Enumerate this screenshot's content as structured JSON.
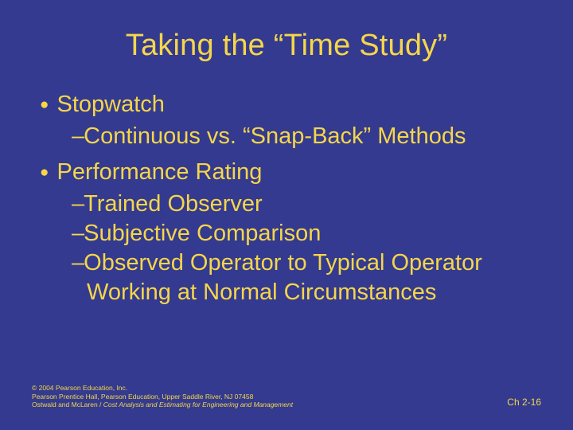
{
  "colors": {
    "background": "#333a8f",
    "text": "#f6d64a"
  },
  "title": "Taking the “Time Study”",
  "bullets": {
    "b1": "Stopwatch",
    "b1_1": "Continuous vs. “Snap-Back” Methods",
    "b2": "Performance Rating",
    "b2_1": "Trained Observer",
    "b2_2": "Subjective Comparison",
    "b2_3": "Observed Operator to Typical Operator Working at Normal Circumstances"
  },
  "footer": {
    "line1": "© 2004 Pearson Education, Inc.",
    "line2": "Pearson Prentice Hall, Pearson Education, Upper Saddle River, NJ 07458",
    "line3_prefix": "Ostwald and McLaren / ",
    "line3_italic": "Cost Analysis and Estimating for Engineering and Management"
  },
  "page": "Ch 2-16"
}
